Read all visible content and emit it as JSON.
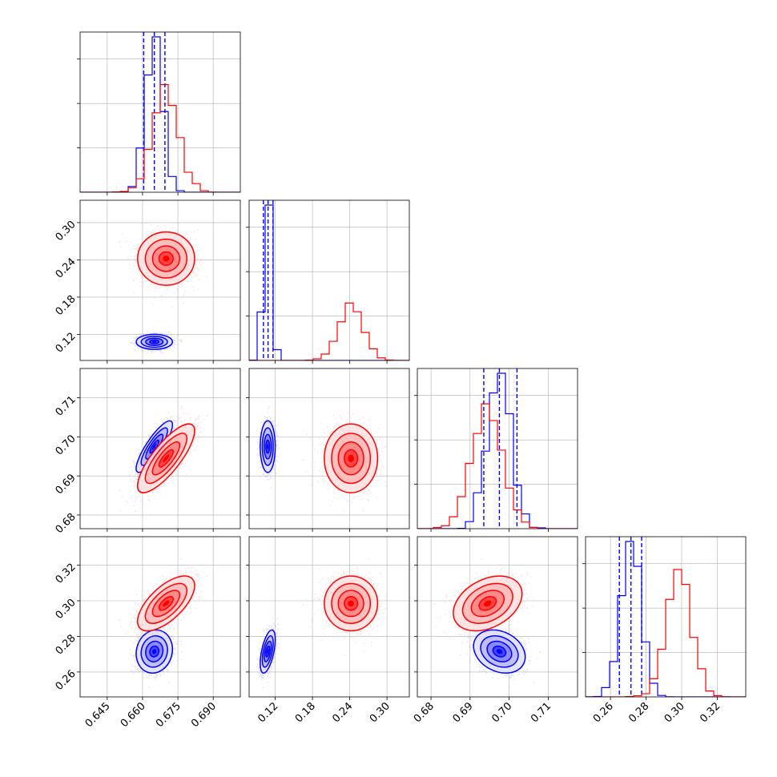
{
  "chart_data": {
    "type": "corner",
    "parameters": [
      {
        "ticks": [
          "0.645",
          "0.660",
          "0.675",
          "0.690"
        ],
        "tick_values": [
          0.645,
          0.66,
          0.675,
          0.69
        ],
        "range": [
          0.6335,
          0.7015
        ]
      },
      {
        "ticks": [
          "0.12",
          "0.18",
          "0.24",
          "0.30"
        ],
        "tick_values": [
          0.12,
          0.18,
          0.24,
          0.3
        ],
        "range": [
          0.078,
          0.336
        ]
      },
      {
        "ticks": [
          "0.68",
          "0.69",
          "0.70",
          "0.71"
        ],
        "tick_values": [
          0.68,
          0.69,
          0.7,
          0.71
        ],
        "range": [
          0.6765,
          0.7175
        ]
      },
      {
        "ticks": [
          "0.26",
          "0.28",
          "0.30",
          "0.32"
        ],
        "tick_values": [
          0.26,
          0.28,
          0.3,
          0.32
        ],
        "range": [
          0.246,
          0.336
        ]
      }
    ],
    "grid": true,
    "series": [
      {
        "color": "#0000ff",
        "mean": [
          0.665,
          0.108,
          0.6975,
          0.2715
        ],
        "std": [
          0.0035,
          0.0055,
          0.003,
          0.0055
        ],
        "correlations": [
          [
            0,
            2,
            0.85
          ],
          [
            0,
            3,
            0.1
          ],
          [
            2,
            3,
            -0.25
          ],
          [
            1,
            3,
            0.55
          ],
          [
            1,
            2,
            0.0
          ],
          [
            0,
            1,
            0.0
          ]
        ],
        "quantiles": [
          [
            0.6605,
            0.665,
            0.6695
          ],
          [
            0.101,
            0.1085,
            0.1165
          ],
          [
            0.6935,
            0.6975,
            0.702
          ],
          [
            0.265,
            0.2715,
            0.2775
          ]
        ]
      },
      {
        "color": "#ff0000",
        "mean": [
          0.67,
          0.242,
          0.6945,
          0.2985
        ],
        "std": [
          0.0055,
          0.0195,
          0.004,
          0.007
        ],
        "correlations": [
          [
            0,
            2,
            0.8
          ],
          [
            0,
            3,
            0.65
          ],
          [
            2,
            3,
            0.35
          ],
          [
            1,
            3,
            0.0
          ],
          [
            1,
            2,
            0.0
          ],
          [
            0,
            1,
            0.0
          ]
        ],
        "quantiles": []
      }
    ]
  }
}
